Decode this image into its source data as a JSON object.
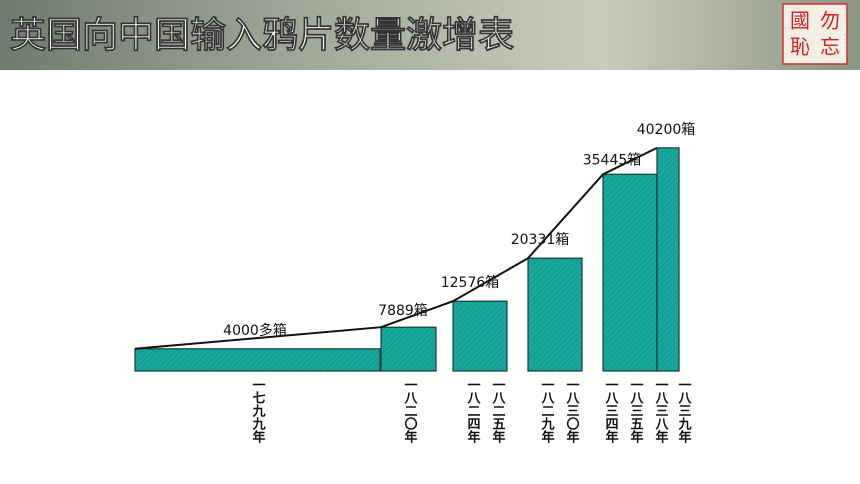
{
  "chart_data": {
    "type": "bar",
    "title": "英国向中国输入鸦片数量激增表",
    "logo": [
      "國",
      "勿",
      "恥",
      "忘"
    ],
    "values": [
      4000,
      7889,
      12576,
      20331,
      35445,
      40200
    ],
    "value_labels": [
      "4000多箱",
      "7889箱",
      "12576箱",
      "20331箱",
      "35445箱",
      "40200箱"
    ],
    "x_labels": [
      "一七九九年",
      "一八二〇年",
      "一八二四年",
      "一八二五年",
      "一八二九年",
      "一八三〇年",
      "一八三四年",
      "一八三五年",
      "一八三八年",
      "一八三九年"
    ],
    "color": "#17a79c"
  }
}
